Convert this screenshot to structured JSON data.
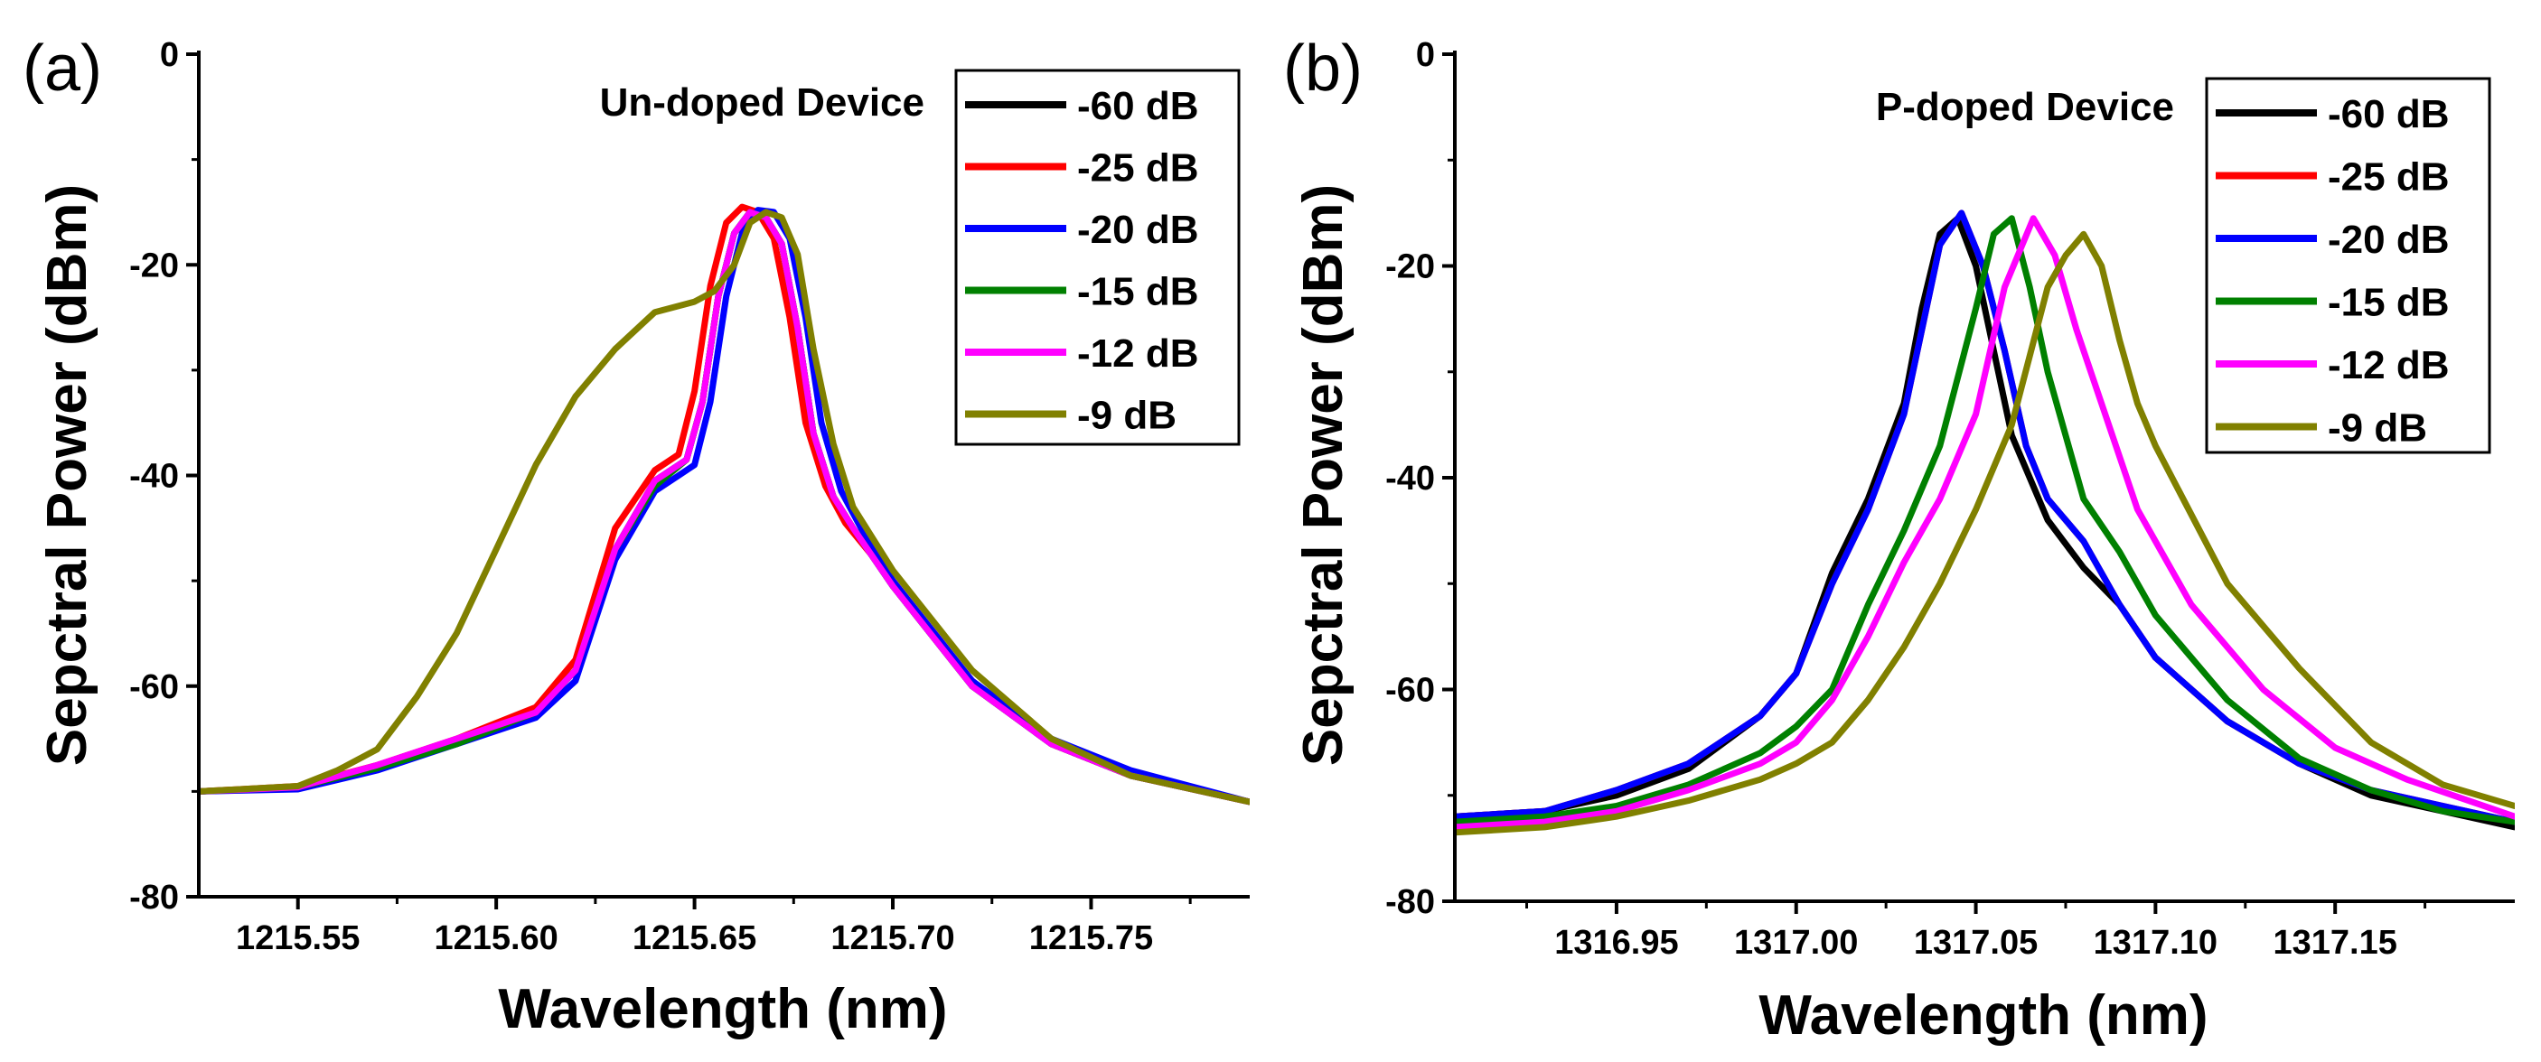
{
  "chart_data": [
    {
      "type": "line",
      "panel_label": "(a)",
      "device_label": "Un-doped Device",
      "xlabel": "Wavelength (nm)",
      "ylabel": "Sepctral Power (dBm)",
      "xlim": [
        1215.525,
        1215.79
      ],
      "ylim": [
        -80,
        0
      ],
      "xticks": [
        1215.55,
        1215.6,
        1215.65,
        1215.7,
        1215.75
      ],
      "xtick_labels": [
        "1215.55",
        "1215.60",
        "1215.65",
        "1215.70",
        "1215.75"
      ],
      "yticks": [
        0,
        -20,
        -40,
        -60,
        -80
      ],
      "ytick_labels": [
        "0",
        "-20",
        "-40",
        "-60",
        "-80"
      ],
      "legend_position": "top-right",
      "series": [
        {
          "name": "-60 dB",
          "color": "#000000",
          "x": [
            1215.525,
            1215.55,
            1215.57,
            1215.59,
            1215.61,
            1215.62,
            1215.63,
            1215.64,
            1215.648,
            1215.652,
            1215.656,
            1215.66,
            1215.664,
            1215.668,
            1215.672,
            1215.676,
            1215.68,
            1215.685,
            1215.69,
            1215.7,
            1215.72,
            1215.74,
            1215.76,
            1215.79
          ],
          "y": [
            -70,
            -69.6,
            -67.8,
            -65.5,
            -62.5,
            -58.5,
            -47,
            -40.5,
            -38.5,
            -33,
            -23,
            -17,
            -15,
            -15.5,
            -18,
            -26,
            -36,
            -42,
            -45,
            -50.5,
            -60,
            -65.5,
            -68.5,
            -71
          ]
        },
        {
          "name": "-25 dB",
          "color": "#ff0000",
          "x": [
            1215.525,
            1215.55,
            1215.57,
            1215.59,
            1215.61,
            1215.62,
            1215.63,
            1215.64,
            1215.646,
            1215.65,
            1215.654,
            1215.658,
            1215.662,
            1215.666,
            1215.67,
            1215.674,
            1215.678,
            1215.683,
            1215.688,
            1215.7,
            1215.72,
            1215.74,
            1215.76,
            1215.79
          ],
          "y": [
            -70,
            -69.5,
            -67.5,
            -65,
            -62,
            -57.5,
            -45,
            -39.5,
            -38,
            -32,
            -22,
            -16,
            -14.5,
            -15,
            -17.5,
            -25,
            -35,
            -41,
            -44.5,
            -50,
            -59.5,
            -65.5,
            -68.5,
            -71
          ]
        },
        {
          "name": "-20 dB",
          "color": "#0000ff",
          "x": [
            1215.525,
            1215.55,
            1215.57,
            1215.59,
            1215.61,
            1215.62,
            1215.63,
            1215.64,
            1215.65,
            1215.654,
            1215.658,
            1215.662,
            1215.666,
            1215.67,
            1215.674,
            1215.678,
            1215.682,
            1215.687,
            1215.692,
            1215.7,
            1215.72,
            1215.74,
            1215.76,
            1215.79
          ],
          "y": [
            -70,
            -69.8,
            -68,
            -65.5,
            -63,
            -59.5,
            -48,
            -41.5,
            -39,
            -33,
            -23,
            -17,
            -14.8,
            -15,
            -17.5,
            -25,
            -35,
            -41.5,
            -45,
            -50,
            -59.5,
            -65,
            -68,
            -71
          ]
        },
        {
          "name": "-15 dB",
          "color": "#008000",
          "x": [
            1215.525,
            1215.55,
            1215.57,
            1215.59,
            1215.61,
            1215.62,
            1215.63,
            1215.64,
            1215.648,
            1215.652,
            1215.656,
            1215.66,
            1215.664,
            1215.668,
            1215.672,
            1215.676,
            1215.68,
            1215.685,
            1215.69,
            1215.7,
            1215.72,
            1215.74,
            1215.76,
            1215.79
          ],
          "y": [
            -70,
            -69.6,
            -67.8,
            -65.5,
            -62.5,
            -58.5,
            -47,
            -41,
            -38.5,
            -33,
            -23,
            -17,
            -15,
            -15.5,
            -18,
            -26,
            -36,
            -42,
            -45,
            -50.5,
            -60,
            -65.5,
            -68.5,
            -71
          ]
        },
        {
          "name": "-12 dB",
          "color": "#ff00ff",
          "x": [
            1215.525,
            1215.55,
            1215.57,
            1215.59,
            1215.61,
            1215.62,
            1215.63,
            1215.64,
            1215.648,
            1215.652,
            1215.656,
            1215.66,
            1215.664,
            1215.668,
            1215.672,
            1215.676,
            1215.68,
            1215.685,
            1215.69,
            1215.7,
            1215.72,
            1215.74,
            1215.76,
            1215.79
          ],
          "y": [
            -70,
            -69.6,
            -67.5,
            -65,
            -62.5,
            -58.5,
            -47,
            -40.5,
            -38.5,
            -33,
            -23,
            -17,
            -15,
            -15.5,
            -18,
            -26,
            -36,
            -42,
            -45,
            -50.5,
            -60,
            -65.5,
            -68.5,
            -71
          ]
        },
        {
          "name": "-9 dB",
          "color": "#808000",
          "x": [
            1215.525,
            1215.55,
            1215.56,
            1215.57,
            1215.58,
            1215.59,
            1215.6,
            1215.61,
            1215.62,
            1215.63,
            1215.64,
            1215.65,
            1215.655,
            1215.66,
            1215.664,
            1215.668,
            1215.672,
            1215.676,
            1215.68,
            1215.685,
            1215.69,
            1215.7,
            1215.72,
            1215.74,
            1215.76,
            1215.79
          ],
          "y": [
            -70,
            -69.5,
            -68,
            -66,
            -61,
            -55,
            -47,
            -39,
            -32.5,
            -28,
            -24.5,
            -23.5,
            -22.5,
            -20,
            -16,
            -15,
            -15.5,
            -19,
            -28,
            -37,
            -43,
            -49,
            -58.5,
            -65,
            -68.5,
            -71
          ]
        }
      ]
    },
    {
      "type": "line",
      "panel_label": "(b)",
      "device_label": "P-doped Device",
      "xlabel": "Wavelength (nm)",
      "ylabel": "Sepctral Power (dBm)",
      "xlim": [
        1316.905,
        1317.2
      ],
      "ylim": [
        -80,
        0
      ],
      "xticks": [
        1316.95,
        1317.0,
        1317.05,
        1317.1,
        1317.15
      ],
      "xtick_labels": [
        "1316.95",
        "1317.00",
        "1317.05",
        "1317.10",
        "1317.15"
      ],
      "yticks": [
        0,
        -20,
        -40,
        -60,
        -80
      ],
      "ytick_labels": [
        "0",
        "-20",
        "-40",
        "-60",
        "-80"
      ],
      "legend_position": "top-right",
      "series": [
        {
          "name": "-60 dB",
          "color": "#000000",
          "x": [
            1316.905,
            1316.93,
            1316.95,
            1316.97,
            1316.99,
            1317.0,
            1317.01,
            1317.02,
            1317.03,
            1317.035,
            1317.04,
            1317.045,
            1317.05,
            1317.055,
            1317.06,
            1317.07,
            1317.08,
            1317.09,
            1317.1,
            1317.12,
            1317.14,
            1317.16,
            1317.18,
            1317.2
          ],
          "y": [
            -72,
            -71.5,
            -70,
            -67.5,
            -62.5,
            -58.5,
            -49,
            -42,
            -33,
            -24,
            -17,
            -15.5,
            -20,
            -28,
            -36,
            -44,
            -48.5,
            -52,
            -57,
            -63,
            -67,
            -70,
            -71.5,
            -73
          ]
        },
        {
          "name": "-25 dB",
          "color": "#ff0000",
          "x": [
            1316.905,
            1316.93,
            1316.95,
            1316.97,
            1316.99,
            1317.0,
            1317.01,
            1317.02,
            1317.03,
            1317.035,
            1317.04,
            1317.046,
            1317.052,
            1317.058,
            1317.064,
            1317.07,
            1317.08,
            1317.09,
            1317.1,
            1317.12,
            1317.14,
            1317.16,
            1317.18,
            1317.2
          ],
          "y": [
            -72,
            -71.5,
            -69.5,
            -67,
            -62.5,
            -58.5,
            -50,
            -43,
            -34,
            -26,
            -18,
            -15,
            -20,
            -28,
            -37,
            -42,
            -46,
            -52,
            -57,
            -63,
            -67,
            -69.5,
            -71,
            -72.5
          ]
        },
        {
          "name": "-20 dB",
          "color": "#0000ff",
          "x": [
            1316.905,
            1316.93,
            1316.95,
            1316.97,
            1316.99,
            1317.0,
            1317.01,
            1317.02,
            1317.03,
            1317.035,
            1317.04,
            1317.046,
            1317.052,
            1317.058,
            1317.064,
            1317.07,
            1317.08,
            1317.09,
            1317.1,
            1317.12,
            1317.14,
            1317.16,
            1317.18,
            1317.2
          ],
          "y": [
            -72,
            -71.5,
            -69.5,
            -67,
            -62.5,
            -58.5,
            -50,
            -43,
            -34,
            -26,
            -18,
            -15,
            -20,
            -28,
            -37,
            -42,
            -46,
            -52,
            -57,
            -63,
            -67,
            -69.5,
            -71,
            -72.5
          ]
        },
        {
          "name": "-15 dB",
          "color": "#008000",
          "x": [
            1316.905,
            1316.93,
            1316.95,
            1316.97,
            1316.99,
            1317.0,
            1317.01,
            1317.02,
            1317.03,
            1317.04,
            1317.05,
            1317.055,
            1317.06,
            1317.065,
            1317.07,
            1317.08,
            1317.09,
            1317.1,
            1317.12,
            1317.14,
            1317.16,
            1317.18,
            1317.2
          ],
          "y": [
            -72.5,
            -72,
            -71,
            -69,
            -66,
            -63.5,
            -60,
            -52,
            -45,
            -37,
            -24,
            -17,
            -15.5,
            -22,
            -30,
            -42,
            -47,
            -53,
            -61,
            -66.5,
            -69.5,
            -71.5,
            -72.5
          ]
        },
        {
          "name": "-12 dB",
          "color": "#ff00ff",
          "x": [
            1316.905,
            1316.93,
            1316.95,
            1316.97,
            1316.99,
            1317.0,
            1317.01,
            1317.02,
            1317.03,
            1317.04,
            1317.05,
            1317.058,
            1317.066,
            1317.072,
            1317.078,
            1317.085,
            1317.095,
            1317.11,
            1317.13,
            1317.15,
            1317.17,
            1317.2
          ],
          "y": [
            -73,
            -72.5,
            -71.5,
            -69.5,
            -67,
            -65,
            -61,
            -55,
            -48,
            -42,
            -34,
            -22,
            -15.5,
            -19,
            -26,
            -33,
            -43,
            -52,
            -60,
            -65.5,
            -68.5,
            -72
          ]
        },
        {
          "name": "-9 dB",
          "color": "#808000",
          "x": [
            1316.905,
            1316.93,
            1316.95,
            1316.97,
            1316.99,
            1317.0,
            1317.01,
            1317.02,
            1317.03,
            1317.04,
            1317.05,
            1317.06,
            1317.07,
            1317.075,
            1317.08,
            1317.085,
            1317.09,
            1317.095,
            1317.1,
            1317.12,
            1317.14,
            1317.16,
            1317.18,
            1317.2
          ],
          "y": [
            -73.5,
            -73,
            -72,
            -70.5,
            -68.5,
            -67,
            -65,
            -61,
            -56,
            -50,
            -43,
            -35,
            -22,
            -19,
            -17,
            -20,
            -27,
            -33,
            -37,
            -50,
            -58,
            -65,
            -69,
            -71
          ]
        }
      ]
    }
  ]
}
